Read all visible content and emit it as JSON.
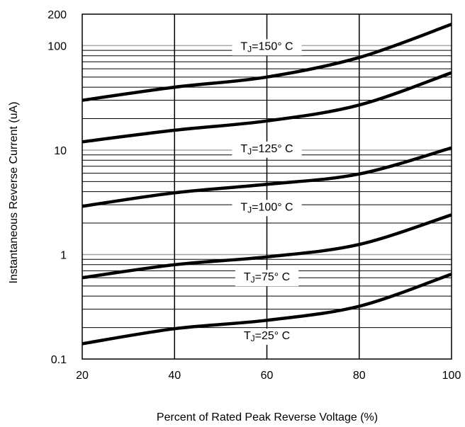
{
  "chart_data": {
    "type": "line",
    "title": "",
    "xlabel": "Percent of Rated Peak Reverse Voltage (%)",
    "ylabel": "Instantaneous Reverse Current (uA)",
    "xlim": [
      20,
      100
    ],
    "ylim": [
      0.1,
      200
    ],
    "yscale": "log",
    "grid": true,
    "x_ticks": [
      "20",
      "40",
      "60",
      "80",
      "100"
    ],
    "y_ticks": [
      "0.1",
      "1",
      "10",
      "100",
      "200"
    ],
    "line_color": "#000000",
    "grid_color": "#000000",
    "decade_grid_color": "#a6a6a6",
    "series": [
      {
        "label_prefix": "T",
        "label_sub": "J",
        "label_rest": "=150° C",
        "label_at": [
          60,
          100
        ],
        "x": [
          20,
          40,
          60,
          80,
          100
        ],
        "y": [
          30,
          40,
          50,
          77,
          160
        ]
      },
      {
        "label_prefix": "T",
        "label_sub": "J",
        "label_rest": "=125° C",
        "label_at": [
          60,
          10.5
        ],
        "x": [
          20,
          40,
          60,
          80,
          100
        ],
        "y": [
          12,
          15.5,
          19,
          27,
          55
        ]
      },
      {
        "label_prefix": "T",
        "label_sub": "J",
        "label_rest": "=100° C",
        "label_at": [
          60,
          2.9
        ],
        "x": [
          20,
          40,
          60,
          80,
          100
        ],
        "y": [
          2.9,
          3.9,
          4.7,
          5.9,
          10.5
        ]
      },
      {
        "label_prefix": "T",
        "label_sub": "J",
        "label_rest": "=75° C",
        "label_at": [
          60,
          0.62
        ],
        "x": [
          20,
          40,
          60,
          80,
          100
        ],
        "y": [
          0.6,
          0.8,
          0.95,
          1.25,
          2.4
        ]
      },
      {
        "label_prefix": "T",
        "label_sub": "J",
        "label_rest": "=25° C",
        "label_at": [
          60,
          0.17
        ],
        "x": [
          20,
          40,
          60,
          80,
          100
        ],
        "y": [
          0.14,
          0.195,
          0.235,
          0.32,
          0.65
        ]
      }
    ]
  }
}
